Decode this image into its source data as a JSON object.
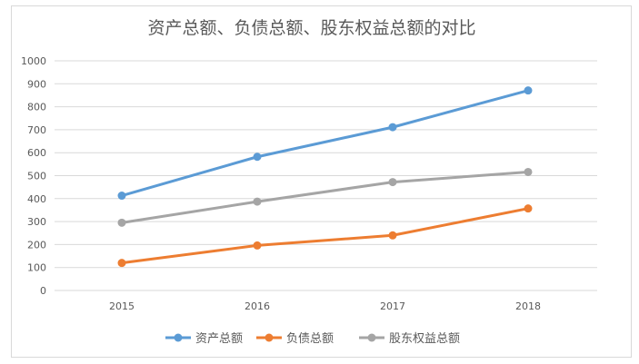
{
  "chart_data": {
    "type": "line",
    "title": "资产总额、负债总额、股东权益总额的对比",
    "categories": [
      "2015",
      "2016",
      "2017",
      "2018"
    ],
    "ylim": [
      0,
      1000
    ],
    "yticks": [
      0,
      100,
      200,
      300,
      400,
      500,
      600,
      700,
      800,
      900,
      1000
    ],
    "grid": true,
    "legend_position": "bottom",
    "series": [
      {
        "name": "资产总额",
        "color": "#5b9bd5",
        "values": [
          413,
          582,
          711,
          871
        ]
      },
      {
        "name": "负债总额",
        "color": "#ed7d31",
        "values": [
          120,
          196,
          240,
          357
        ]
      },
      {
        "name": "股东权益总额",
        "color": "#a5a5a5",
        "values": [
          295,
          387,
          472,
          516
        ]
      }
    ]
  }
}
